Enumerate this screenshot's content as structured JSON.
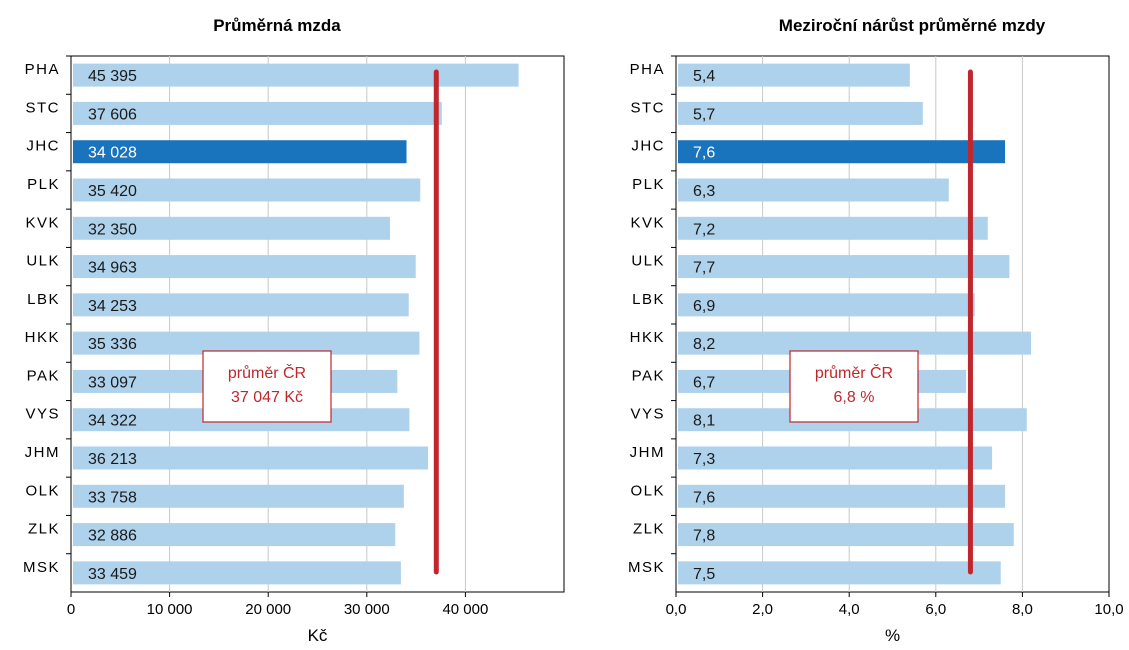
{
  "chart_data": [
    {
      "type": "bar",
      "orientation": "horizontal",
      "title": "Průměrná mzda",
      "xlabel": "Kč",
      "ylabel": "",
      "xlim": [
        0,
        50000
      ],
      "x_ticks": [
        0,
        10000,
        20000,
        30000,
        40000
      ],
      "x_tick_labels": [
        "0",
        "10 000",
        "20 000",
        "30 000",
        "40 000"
      ],
      "gridlines": "vertical",
      "categories": [
        "PHA",
        "STC",
        "JHC",
        "PLK",
        "KVK",
        "ULK",
        "LBK",
        "HKK",
        "PAK",
        "VYS",
        "JHM",
        "OLK",
        "ZLK",
        "MSK"
      ],
      "values": [
        45395,
        37606,
        34028,
        35420,
        32350,
        34963,
        34253,
        35336,
        33097,
        34322,
        36213,
        33758,
        32886,
        33459
      ],
      "value_labels": [
        "45 395",
        "37 606",
        "34 028",
        "35 420",
        "32 350",
        "34 963",
        "34 253",
        "35 336",
        "33 097",
        "34 322",
        "36 213",
        "33 758",
        "32 886",
        "33 459"
      ],
      "highlight_category": "JHC",
      "average": {
        "value": 37047,
        "label_line1": "průměr  ČR",
        "label_line2": "37 047 Kč"
      }
    },
    {
      "type": "bar",
      "orientation": "horizontal",
      "title": "Meziroční nárůst průměrné mzdy",
      "xlabel": "%",
      "ylabel": "",
      "xlim": [
        0,
        10
      ],
      "x_ticks": [
        0,
        2,
        4,
        6,
        8,
        10
      ],
      "x_tick_labels": [
        "0,0",
        "2,0",
        "4,0",
        "6,0",
        "8,0",
        "10,0"
      ],
      "gridlines": "vertical",
      "categories": [
        "PHA",
        "STC",
        "JHC",
        "PLK",
        "KVK",
        "ULK",
        "LBK",
        "HKK",
        "PAK",
        "VYS",
        "JHM",
        "OLK",
        "ZLK",
        "MSK"
      ],
      "values": [
        5.4,
        5.7,
        7.6,
        6.3,
        7.2,
        7.7,
        6.9,
        8.2,
        6.7,
        8.1,
        7.3,
        7.6,
        7.8,
        7.5
      ],
      "value_labels": [
        "5,4",
        "5,7",
        "7,6",
        "6,3",
        "7,2",
        "7,7",
        "6,9",
        "8,2",
        "6,7",
        "8,1",
        "7,3",
        "7,6",
        "7,8",
        "7,5"
      ],
      "highlight_category": "JHC",
      "average": {
        "value": 6.8,
        "label_line1": "průměr  ČR",
        "label_line2": "6,8 %"
      }
    }
  ],
  "colors": {
    "bar": "#aed1ec",
    "bar_highlight": "#1a73bd",
    "average_line": "#c0272d",
    "grid": "#c8c8c8",
    "axis": "#000000",
    "text": "#000000",
    "label_text": "#1a1a1a",
    "label_text_highlight": "#ffffff"
  }
}
